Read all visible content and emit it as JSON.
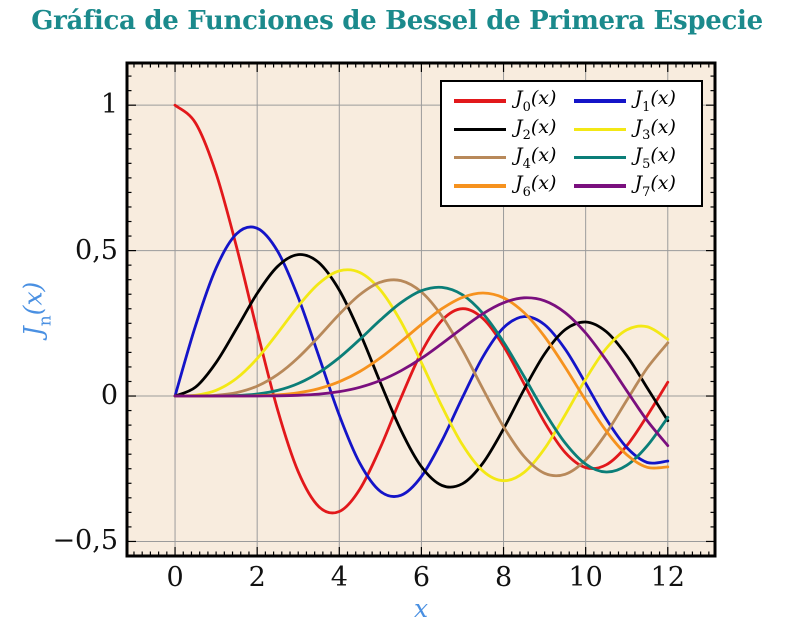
{
  "title": {
    "text": "Gráfica de Funciones de Bessel de Primera Especie",
    "color": "#1b8a8c"
  },
  "axes": {
    "x": {
      "label": "x",
      "label_color": "#4a90e2",
      "ticks": [
        {
          "v": 0,
          "label": "0"
        },
        {
          "v": 2,
          "label": "2"
        },
        {
          "v": 4,
          "label": "4"
        },
        {
          "v": 6,
          "label": "6"
        },
        {
          "v": 8,
          "label": "8"
        },
        {
          "v": 10,
          "label": "10"
        },
        {
          "v": 12,
          "label": "12"
        }
      ],
      "minor_step": 0.2
    },
    "y": {
      "label": {
        "func": "J",
        "sub": "n",
        "suffix": "(x)"
      },
      "label_color": "#4a90e2",
      "ticks": [
        {
          "v": 1,
          "label": "1"
        },
        {
          "v": 0.5,
          "label": "0,5"
        },
        {
          "v": 0,
          "label": "0"
        },
        {
          "v": -0.5,
          "label": "−0,5"
        }
      ],
      "minor_step": 0.05
    }
  },
  "plot": {
    "background": "#f8ecde",
    "grid_color": "#9b9b9b",
    "border_color": "#000000",
    "tick_color": "#000000"
  },
  "legend": {
    "func": "J",
    "var_suffix": "(x)"
  },
  "chart_data": {
    "type": "line",
    "title": "Gráfica de Funciones de Bessel de Primera Especie",
    "xlabel": "x",
    "ylabel": "Jn(x)",
    "xlim": [
      -1.17,
      13.15
    ],
    "ylim": [
      -0.55,
      1.145
    ],
    "grid": true,
    "legend_position": "top-right",
    "x": [
      0,
      0.5,
      1,
      1.5,
      2,
      2.5,
      3,
      3.5,
      4,
      4.5,
      5,
      5.5,
      6,
      6.5,
      7,
      7.5,
      8,
      8.5,
      9,
      9.5,
      10,
      10.5,
      11,
      11.5,
      12
    ],
    "series": [
      {
        "name": "J0(x)",
        "order": 0,
        "color": "#e2181b",
        "values": [
          1.0,
          0.9385,
          0.7652,
          0.5118,
          0.2239,
          -0.0484,
          -0.2601,
          -0.3801,
          -0.3971,
          -0.3205,
          -0.1776,
          -0.0068,
          0.1506,
          0.2601,
          0.3001,
          0.2663,
          0.1717,
          0.0419,
          -0.0903,
          -0.1939,
          -0.2459,
          -0.2366,
          -0.1712,
          -0.0677,
          0.0477
        ]
      },
      {
        "name": "J1(x)",
        "order": 1,
        "color": "#1414c8",
        "values": [
          0,
          0.2423,
          0.4401,
          0.5579,
          0.5767,
          0.4971,
          0.3391,
          0.1374,
          -0.066,
          -0.2311,
          -0.3276,
          -0.3414,
          -0.2767,
          -0.1538,
          -0.0047,
          0.1352,
          0.2346,
          0.2731,
          0.2453,
          0.1613,
          0.0435,
          -0.0789,
          -0.1768,
          -0.2284,
          -0.2234
        ]
      },
      {
        "name": "J2(x)",
        "order": 2,
        "color": "#000000",
        "values": [
          0,
          0.0306,
          0.1149,
          0.2321,
          0.3528,
          0.4461,
          0.4861,
          0.4586,
          0.3641,
          0.2178,
          0.0466,
          -0.1173,
          -0.2429,
          -0.3074,
          -0.3014,
          -0.2303,
          -0.113,
          0.0223,
          0.1448,
          0.2279,
          0.2546,
          0.2216,
          0.139,
          0.028,
          -0.0849
        ]
      },
      {
        "name": "J3(x)",
        "order": 3,
        "color": "#f3e815",
        "values": [
          0,
          0.0026,
          0.0196,
          0.061,
          0.1289,
          0.2166,
          0.3091,
          0.3867,
          0.4302,
          0.4247,
          0.3648,
          0.2561,
          0.1148,
          -0.0353,
          -0.1676,
          -0.2581,
          -0.2911,
          -0.2626,
          -0.1809,
          -0.0653,
          0.0584,
          0.1633,
          0.2273,
          0.2381,
          0.1951
        ]
      },
      {
        "name": "J4(x)",
        "order": 4,
        "color": "#b8895a",
        "values": [
          0,
          0.0002,
          0.0025,
          0.0118,
          0.034,
          0.074,
          0.132,
          0.2044,
          0.2811,
          0.3485,
          0.3912,
          0.3967,
          0.3576,
          0.2747,
          0.1578,
          0.0238,
          -0.1054,
          -0.2078,
          -0.2655,
          -0.2691,
          -0.2196,
          -0.1283,
          -0.015,
          0.0962,
          0.1825
        ]
      },
      {
        "name": "J5(x)",
        "order": 5,
        "color": "#0b7e78",
        "values": [
          0,
          0,
          0.0002,
          0.0018,
          0.007,
          0.0195,
          0.043,
          0.0804,
          0.1321,
          0.1947,
          0.2611,
          0.3209,
          0.3621,
          0.3736,
          0.3479,
          0.2834,
          0.1858,
          0.067,
          -0.055,
          -0.1613,
          -0.2341,
          -0.2611,
          -0.2383,
          -0.1712,
          -0.0735
        ]
      },
      {
        "name": "J6(x)",
        "order": 6,
        "color": "#f6921e",
        "values": [
          0,
          0,
          0,
          0.0002,
          0.0012,
          0.0042,
          0.0114,
          0.0254,
          0.0491,
          0.0843,
          0.131,
          0.1868,
          0.2458,
          0.3001,
          0.3392,
          0.3541,
          0.3376,
          0.2867,
          0.2043,
          0.0993,
          -0.0145,
          -0.1204,
          -0.2016,
          -0.245,
          -0.2437
        ]
      },
      {
        "name": "J7(x)",
        "order": 7,
        "color": "#7a0f7e",
        "values": [
          0,
          0,
          0,
          0,
          0.0002,
          0.0008,
          0.0025,
          0.0067,
          0.0152,
          0.03,
          0.0534,
          0.0866,
          0.1296,
          0.1804,
          0.2336,
          0.2832,
          0.3206,
          0.3377,
          0.3275,
          0.2867,
          0.2167,
          0.1235,
          0.0184,
          -0.0846,
          -0.1703
        ]
      }
    ]
  }
}
